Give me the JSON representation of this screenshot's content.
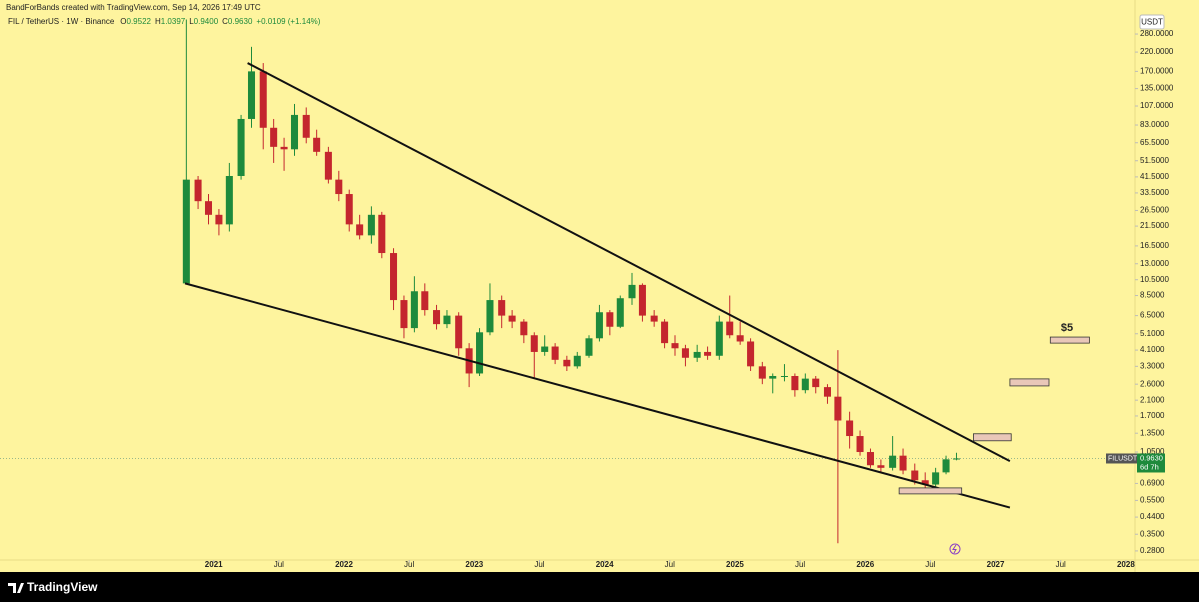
{
  "chart_data": {
    "type": "candlestick",
    "credit": "BandForBands created with TradingView.com, Sep 14, 2026 17:49 UTC",
    "title": "FIL / TetherUS · 1W · Binance",
    "stats": [
      {
        "label": "O",
        "value": "0.9522"
      },
      {
        "label": "H",
        "value": "1.0397"
      },
      {
        "label": "L",
        "value": "0.9400"
      },
      {
        "label": "C",
        "value": "0.9630"
      }
    ],
    "change": "+0.0109 (+1.14%)",
    "currency": "USDT",
    "log_scale": true,
    "up_color": "#1e8a3c",
    "down_color": "#c4262e",
    "x": [
      2020.79,
      2020.88,
      2020.96,
      2021.04,
      2021.12,
      2021.21,
      2021.29,
      2021.38,
      2021.46,
      2021.54,
      2021.62,
      2021.71,
      2021.79,
      2021.88,
      2021.96,
      2022.04,
      2022.12,
      2022.21,
      2022.29,
      2022.38,
      2022.46,
      2022.54,
      2022.62,
      2022.71,
      2022.79,
      2022.88,
      2022.96,
      2023.04,
      2023.12,
      2023.21,
      2023.29,
      2023.38,
      2023.46,
      2023.54,
      2023.62,
      2023.71,
      2023.79,
      2023.88,
      2023.96,
      2024.04,
      2024.12,
      2024.21,
      2024.29,
      2024.38,
      2024.46,
      2024.54,
      2024.62,
      2024.71,
      2024.79,
      2024.88,
      2024.96,
      2025.04,
      2025.12,
      2025.21,
      2025.29,
      2025.38,
      2025.46,
      2025.54,
      2025.62,
      2025.71,
      2025.79,
      2025.88,
      2025.96,
      2026.04,
      2026.12,
      2026.21,
      2026.29,
      2026.38,
      2026.46,
      2026.54,
      2026.62,
      2026.7
    ],
    "open": [
      10,
      40,
      30,
      25,
      22,
      42,
      90,
      170,
      80,
      62,
      60,
      95,
      70,
      58,
      40,
      33,
      22,
      19,
      25,
      15,
      8,
      5.5,
      9,
      7,
      5.8,
      6.5,
      4.2,
      3,
      5.2,
      8,
      6.5,
      6,
      5,
      4,
      4.3,
      3.6,
      3.3,
      3.8,
      4.8,
      6.8,
      5.6,
      8.2,
      9.8,
      6.5,
      6,
      4.5,
      4.2,
      3.7,
      4,
      3.8,
      6,
      5,
      4.6,
      3.3,
      2.8,
      2.9,
      2.9,
      2.4,
      2.8,
      2.5,
      2.2,
      1.6,
      1.3,
      1.05,
      0.88,
      0.85,
      1.0,
      0.82,
      0.72,
      0.68,
      0.8,
      0.9522
    ],
    "high": [
      340,
      42,
      33,
      27,
      50,
      95,
      236,
      190,
      90,
      70,
      110,
      105,
      78,
      62,
      45,
      35,
      25,
      28,
      26,
      16,
      8.5,
      11,
      10,
      7.5,
      7,
      6.8,
      4.5,
      5.5,
      10,
      8.5,
      7,
      6.2,
      5.2,
      5,
      4.5,
      3.8,
      4,
      5,
      7.5,
      7,
      8.5,
      11.5,
      10,
      7,
      6.2,
      5,
      4.4,
      4.4,
      4.3,
      6.5,
      8.5,
      6,
      4.8,
      3.5,
      3,
      3.4,
      3,
      3,
      2.9,
      2.6,
      4.1,
      1.8,
      1.4,
      1.1,
      0.95,
      1.3,
      1.1,
      0.9,
      0.8,
      0.85,
      1.0,
      1.0397
    ],
    "low": [
      10,
      27,
      22,
      19,
      20,
      40,
      80,
      60,
      50,
      45,
      55,
      65,
      55,
      38,
      30,
      20,
      18,
      17,
      14,
      7,
      4.8,
      5.2,
      6.5,
      5.4,
      5.5,
      3.8,
      2.5,
      2.9,
      5,
      5.5,
      5.5,
      4.5,
      2.8,
      3.8,
      3.4,
      3.1,
      3.2,
      3.7,
      4.6,
      5,
      5.5,
      7.5,
      6,
      5.6,
      4.2,
      3.8,
      3.3,
      3.5,
      3.6,
      3.6,
      4.8,
      4.4,
      3.1,
      2.6,
      2.3,
      2.7,
      2.2,
      2.3,
      2.3,
      2.0,
      0.31,
      1.1,
      1.0,
      0.85,
      0.8,
      0.82,
      0.78,
      0.68,
      0.64,
      0.66,
      0.78,
      0.94
    ],
    "close": [
      40,
      30,
      25,
      22,
      42,
      90,
      170,
      80,
      62,
      60,
      95,
      70,
      58,
      40,
      33,
      22,
      19,
      25,
      15,
      8,
      5.5,
      9,
      7,
      5.8,
      6.5,
      4.2,
      3,
      5.2,
      8,
      6.5,
      6,
      5,
      4,
      4.3,
      3.6,
      3.3,
      3.8,
      4.8,
      6.8,
      5.6,
      8.2,
      9.8,
      6.5,
      6,
      4.5,
      4.2,
      3.7,
      4,
      3.8,
      6,
      5,
      4.6,
      3.3,
      2.8,
      2.9,
      2.9,
      2.4,
      2.8,
      2.5,
      2.2,
      1.6,
      1.3,
      1.05,
      0.88,
      0.85,
      1.0,
      0.82,
      0.72,
      0.68,
      0.8,
      0.9522,
      0.963
    ],
    "xlim": [
      2019.36,
      2028.07
    ],
    "ylim": [
      0.248,
      366
    ],
    "yticks": [
      {
        "value": 280,
        "label": "280.0000"
      },
      {
        "value": 220,
        "label": "220.0000"
      },
      {
        "value": 170,
        "label": "170.0000"
      },
      {
        "value": 135,
        "label": "135.0000"
      },
      {
        "value": 107,
        "label": "107.0000"
      },
      {
        "value": 83,
        "label": "83.0000"
      },
      {
        "value": 65.5,
        "label": "65.5000"
      },
      {
        "value": 51.5,
        "label": "51.5000"
      },
      {
        "value": 41.5,
        "label": "41.5000"
      },
      {
        "value": 33.5,
        "label": "33.5000"
      },
      {
        "value": 26.5,
        "label": "26.5000"
      },
      {
        "value": 21.5,
        "label": "21.5000"
      },
      {
        "value": 16.5,
        "label": "16.5000"
      },
      {
        "value": 13,
        "label": "13.0000"
      },
      {
        "value": 10.5,
        "label": "10.5000"
      },
      {
        "value": 8.5,
        "label": "8.5000"
      },
      {
        "value": 6.5,
        "label": "6.5000"
      },
      {
        "value": 5.1,
        "label": "5.1000"
      },
      {
        "value": 4.1,
        "label": "4.1000"
      },
      {
        "value": 3.3,
        "label": "3.3000"
      },
      {
        "value": 2.6,
        "label": "2.6000"
      },
      {
        "value": 2.1,
        "label": "2.1000"
      },
      {
        "value": 1.7,
        "label": "1.7000"
      },
      {
        "value": 1.35,
        "label": "1.3500"
      },
      {
        "value": 1.05,
        "label": "1.0500"
      },
      {
        "value": 0.69,
        "label": "0.6900"
      },
      {
        "value": 0.55,
        "label": "0.5500"
      },
      {
        "value": 0.44,
        "label": "0.4400"
      },
      {
        "value": 0.35,
        "label": "0.3500"
      },
      {
        "value": 0.28,
        "label": "0.2800"
      }
    ],
    "xticks": [
      2021,
      {
        "value": 2021.5,
        "label": "Jul"
      },
      2022,
      {
        "value": 2022.5,
        "label": "Jul"
      },
      2023,
      {
        "value": 2023.5,
        "label": "Jul"
      },
      2024,
      {
        "value": 2024.5,
        "label": "Jul"
      },
      2025,
      {
        "value": 2025.5,
        "label": "Jul"
      },
      2026,
      {
        "value": 2026.5,
        "label": "Jul"
      },
      2027,
      {
        "value": 2027.5,
        "label": "Jul"
      },
      2028
    ],
    "last_price": {
      "symbol": "FILUSDT",
      "value": 0.963,
      "label": "0.9630",
      "countdown": "6d 7h"
    },
    "trendlines": [
      {
        "x": [
          2021.26,
          2027.11
        ],
        "y": [
          190,
          0.93
        ]
      },
      {
        "x": [
          2020.78,
          2027.11
        ],
        "y": [
          10,
          0.5
        ]
      }
    ],
    "zones": [
      {
        "x": [
          2026.26,
          2026.74
        ],
        "y": [
          0.6,
          0.65
        ]
      },
      {
        "x": [
          2026.83,
          2027.12
        ],
        "y": [
          1.22,
          1.34
        ]
      },
      {
        "x": [
          2027.11,
          2027.41
        ],
        "y": [
          2.54,
          2.79
        ]
      },
      {
        "x": [
          2027.42,
          2027.72
        ],
        "y": [
          4.5,
          4.88
        ]
      }
    ],
    "annotation": "$5",
    "brand": "TradingView"
  }
}
